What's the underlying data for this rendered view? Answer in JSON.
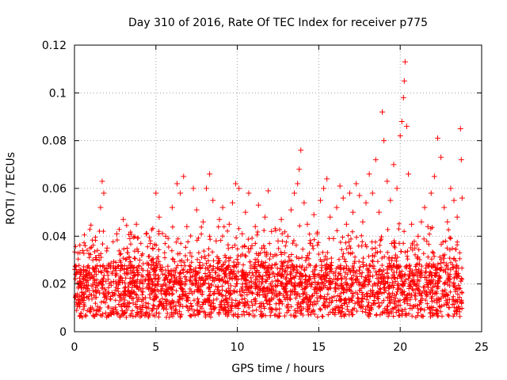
{
  "chart_data": {
    "type": "scatter",
    "title": "Day 310 of 2016, Rate Of TEC Index for receiver p775",
    "xlabel": "GPS time / hours",
    "ylabel": "ROTI / TECUs",
    "xlim": [
      0,
      25
    ],
    "ylim": [
      0,
      0.12
    ],
    "x_ticks": [
      0,
      5,
      10,
      15,
      20,
      25
    ],
    "x_tick_labels": [
      "0",
      "5",
      "10",
      "15",
      "20",
      "25"
    ],
    "y_ticks": [
      0,
      0.02,
      0.04,
      0.06,
      0.08,
      0.1,
      0.12
    ],
    "y_tick_labels": [
      "0",
      "0.02",
      "0.04",
      "0.06",
      "0.08",
      "0.1",
      "0.12"
    ],
    "grid": true,
    "marker": "plus",
    "color": "#ff0000",
    "series": [
      {
        "name": "ROTI",
        "points": [
          [
            0.1,
            0.026
          ],
          [
            0.3,
            0.012
          ],
          [
            0.5,
            0.034
          ],
          [
            0.8,
            0.018
          ],
          [
            1.0,
            0.01
          ],
          [
            1.3,
            0.031
          ],
          [
            1.6,
            0.052
          ],
          [
            1.7,
            0.063
          ],
          [
            1.8,
            0.058
          ],
          [
            2.0,
            0.035
          ],
          [
            2.2,
            0.008
          ],
          [
            2.4,
            0.021
          ],
          [
            2.6,
            0.041
          ],
          [
            2.8,
            0.015
          ],
          [
            3.0,
            0.047
          ],
          [
            3.2,
            0.025
          ],
          [
            3.4,
            0.039
          ],
          [
            3.6,
            0.012
          ],
          [
            3.8,
            0.045
          ],
          [
            4.0,
            0.03
          ],
          [
            4.2,
            0.018
          ],
          [
            4.4,
            0.041
          ],
          [
            4.6,
            0.022
          ],
          [
            4.8,
            0.035
          ],
          [
            5.0,
            0.058
          ],
          [
            5.2,
            0.048
          ],
          [
            5.4,
            0.027
          ],
          [
            5.6,
            0.04
          ],
          [
            5.8,
            0.016
          ],
          [
            6.0,
            0.052
          ],
          [
            6.3,
            0.062
          ],
          [
            6.5,
            0.058
          ],
          [
            6.7,
            0.065
          ],
          [
            6.9,
            0.044
          ],
          [
            7.1,
            0.033
          ],
          [
            7.3,
            0.06
          ],
          [
            7.5,
            0.051
          ],
          [
            7.7,
            0.029
          ],
          [
            7.9,
            0.046
          ],
          [
            8.1,
            0.06
          ],
          [
            8.3,
            0.066
          ],
          [
            8.5,
            0.055
          ],
          [
            8.7,
            0.038
          ],
          [
            8.9,
            0.047
          ],
          [
            9.1,
            0.052
          ],
          [
            9.3,
            0.031
          ],
          [
            9.5,
            0.045
          ],
          [
            9.7,
            0.054
          ],
          [
            9.9,
            0.062
          ],
          [
            10.1,
            0.06
          ],
          [
            10.3,
            0.041
          ],
          [
            10.5,
            0.05
          ],
          [
            10.7,
            0.058
          ],
          [
            10.9,
            0.036
          ],
          [
            11.1,
            0.044
          ],
          [
            11.3,
            0.053
          ],
          [
            11.5,
            0.035
          ],
          [
            11.7,
            0.048
          ],
          [
            11.9,
            0.059
          ],
          [
            12.1,
            0.042
          ],
          [
            12.3,
            0.028
          ],
          [
            12.5,
            0.038
          ],
          [
            12.7,
            0.047
          ],
          [
            12.9,
            0.033
          ],
          [
            13.1,
            0.04
          ],
          [
            13.3,
            0.051
          ],
          [
            13.5,
            0.058
          ],
          [
            13.7,
            0.062
          ],
          [
            13.8,
            0.068
          ],
          [
            13.9,
            0.076
          ],
          [
            14.1,
            0.054
          ],
          [
            14.3,
            0.045
          ],
          [
            14.5,
            0.037
          ],
          [
            14.7,
            0.049
          ],
          [
            14.9,
            0.041
          ],
          [
            15.1,
            0.055
          ],
          [
            15.3,
            0.06
          ],
          [
            15.5,
            0.064
          ],
          [
            15.7,
            0.048
          ],
          [
            15.9,
            0.039
          ],
          [
            16.1,
            0.052
          ],
          [
            16.3,
            0.061
          ],
          [
            16.5,
            0.056
          ],
          [
            16.7,
            0.045
          ],
          [
            16.9,
            0.058
          ],
          [
            17.1,
            0.05
          ],
          [
            17.3,
            0.062
          ],
          [
            17.5,
            0.057
          ],
          [
            17.7,
            0.046
          ],
          [
            17.9,
            0.054
          ],
          [
            18.1,
            0.066
          ],
          [
            18.3,
            0.058
          ],
          [
            18.5,
            0.072
          ],
          [
            18.7,
            0.05
          ],
          [
            18.9,
            0.092
          ],
          [
            19.0,
            0.08
          ],
          [
            19.2,
            0.063
          ],
          [
            19.4,
            0.055
          ],
          [
            19.6,
            0.07
          ],
          [
            19.8,
            0.06
          ],
          [
            20.0,
            0.082
          ],
          [
            20.1,
            0.088
          ],
          [
            20.2,
            0.098
          ],
          [
            20.25,
            0.105
          ],
          [
            20.3,
            0.113
          ],
          [
            20.4,
            0.086
          ],
          [
            20.5,
            0.066
          ],
          [
            20.7,
            0.045
          ],
          [
            20.9,
            0.035
          ],
          [
            21.1,
            0.04
          ],
          [
            21.3,
            0.046
          ],
          [
            21.5,
            0.052
          ],
          [
            21.7,
            0.044
          ],
          [
            21.9,
            0.058
          ],
          [
            22.1,
            0.065
          ],
          [
            22.3,
            0.081
          ],
          [
            22.5,
            0.073
          ],
          [
            22.7,
            0.052
          ],
          [
            22.9,
            0.046
          ],
          [
            23.1,
            0.06
          ],
          [
            23.3,
            0.055
          ],
          [
            23.5,
            0.048
          ],
          [
            23.7,
            0.085
          ],
          [
            23.75,
            0.072
          ],
          [
            23.8,
            0.056
          ]
        ]
      }
    ]
  }
}
